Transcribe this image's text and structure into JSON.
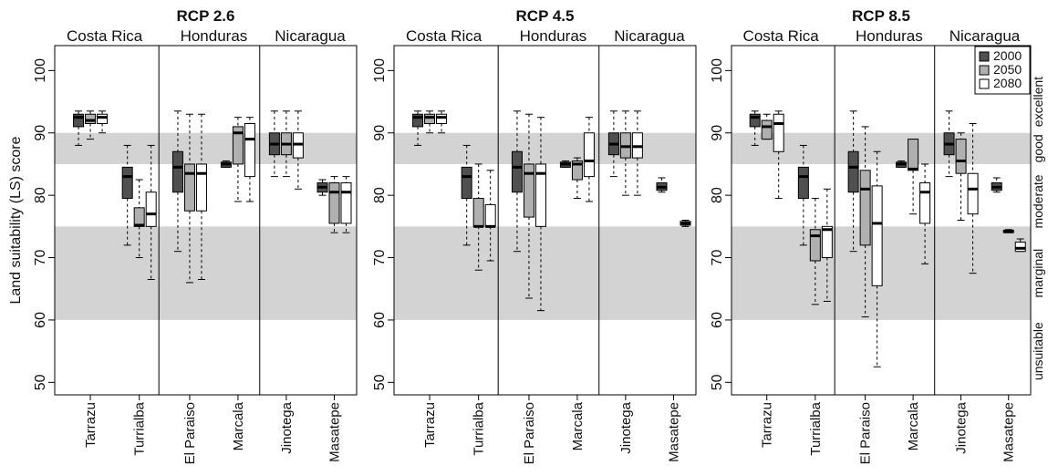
{
  "chart_data": [
    {
      "type": "box",
      "title": "RCP 2.6",
      "ylabel": "Land suitability (LS) score",
      "ylim": [
        48,
        104
      ],
      "yticks": [
        50,
        60,
        70,
        80,
        90,
        100
      ],
      "countries": [
        "Costa Rica",
        "Honduras",
        "Nicaragua"
      ],
      "sites": [
        "Tarrazu",
        "Turrialba",
        "El Paraiso",
        "Marcala",
        "Jinotega",
        "Masatepe"
      ],
      "bands": [
        {
          "from": 85,
          "to": 90
        },
        {
          "from": 60,
          "to": 75
        }
      ],
      "boxes": [
        [
          [
            88,
            91,
            92.5,
            93,
            93.5
          ],
          [
            89,
            91.5,
            92,
            93,
            93.5
          ],
          [
            90,
            91.5,
            92.5,
            93,
            93.5
          ]
        ],
        [
          [
            72,
            79.5,
            83,
            84.5,
            88
          ],
          [
            70,
            75,
            75.2,
            78,
            82.5
          ],
          [
            66.5,
            75,
            77,
            80.5,
            88
          ]
        ],
        [
          [
            71,
            80.5,
            84.5,
            87,
            93.5
          ],
          [
            66,
            77.5,
            83.5,
            85,
            93
          ],
          [
            66.5,
            77.5,
            83.5,
            85,
            93
          ]
        ],
        [
          [
            84.5,
            84.5,
            85,
            85.3,
            85.5
          ],
          [
            79,
            85,
            90,
            91,
            92.5
          ],
          [
            79,
            83,
            89,
            91.5,
            92.5
          ]
        ],
        [
          [
            83,
            86.5,
            88.2,
            90,
            93.5
          ],
          [
            83,
            86.5,
            88.2,
            90,
            93.5
          ],
          [
            81,
            86,
            88.2,
            90,
            93.5
          ]
        ],
        [
          [
            80,
            80.5,
            81.3,
            82,
            82.5
          ],
          [
            74,
            75.5,
            80.5,
            82,
            83
          ],
          [
            74,
            75.5,
            80.5,
            82,
            83
          ]
        ]
      ]
    },
    {
      "type": "box",
      "title": "RCP 4.5",
      "ylabel": "",
      "ylim": [
        48,
        104
      ],
      "yticks": [
        50,
        60,
        70,
        80,
        90,
        100
      ],
      "countries": [
        "Costa Rica",
        "Honduras",
        "Nicaragua"
      ],
      "sites": [
        "Tarrazu",
        "Turrialba",
        "El Paraiso",
        "Marcala",
        "Jinotega",
        "Masatepe"
      ],
      "bands": [
        {
          "from": 85,
          "to": 90
        },
        {
          "from": 60,
          "to": 75
        }
      ],
      "boxes": [
        [
          [
            88,
            91,
            92.5,
            93,
            93.5
          ],
          [
            90,
            91.5,
            92.5,
            93,
            93.5
          ],
          [
            90,
            91.5,
            92.5,
            93,
            93.5
          ]
        ],
        [
          [
            72,
            79.5,
            83,
            84.5,
            88
          ],
          [
            68,
            75,
            75,
            79.5,
            85
          ],
          [
            69.5,
            75,
            75,
            78.5,
            84
          ]
        ],
        [
          [
            71,
            80.5,
            84.5,
            87,
            93.5
          ],
          [
            63.5,
            76.5,
            83.5,
            85,
            93
          ],
          [
            61.5,
            75,
            83.5,
            85,
            92.5
          ]
        ],
        [
          [
            84.5,
            84.5,
            85,
            85.3,
            85.5
          ],
          [
            79.5,
            82.5,
            85,
            85.5,
            86
          ],
          [
            79,
            83,
            85.5,
            90,
            92.5
          ]
        ],
        [
          [
            83,
            86.5,
            88.2,
            90,
            93.5
          ],
          [
            80,
            86,
            87.8,
            90,
            93.5
          ],
          [
            80,
            86,
            87.8,
            90,
            93.5
          ]
        ],
        [
          [
            80.5,
            80.8,
            81.3,
            82,
            82.8
          ],
          null,
          [
            75,
            75.2,
            75.5,
            75.8,
            76
          ]
        ]
      ]
    },
    {
      "type": "box",
      "title": "RCP 8.5",
      "ylabel": "",
      "ylim": [
        48,
        104
      ],
      "yticks": [
        50,
        60,
        70,
        80,
        90,
        100
      ],
      "countries": [
        "Costa Rica",
        "Honduras",
        "Nicaragua"
      ],
      "sites": [
        "Tarrazu",
        "Turrialba",
        "El Paraiso",
        "Marcala",
        "Jinotega",
        "Masatepe"
      ],
      "bands": [
        {
          "from": 85,
          "to": 90
        },
        {
          "from": 60,
          "to": 75
        }
      ],
      "classes": [
        "excellent",
        "good",
        "moderate",
        "marginal",
        "unsuitable"
      ],
      "legend": {
        "position": "top-right",
        "entries": [
          {
            "label": "2000",
            "color": "#505050"
          },
          {
            "label": "2050",
            "color": "#b0b0b0"
          },
          {
            "label": "2080",
            "color": "#ffffff"
          }
        ]
      },
      "boxes": [
        [
          [
            88,
            91,
            92.5,
            93,
            93.5
          ],
          [
            89,
            89,
            91,
            92,
            93
          ],
          [
            79.5,
            87,
            91.5,
            93,
            93.5
          ]
        ],
        [
          [
            72,
            79.5,
            83,
            84.5,
            88
          ],
          [
            62.5,
            69.5,
            73.5,
            74.5,
            79.5
          ],
          [
            63,
            70,
            74.5,
            75,
            81
          ]
        ],
        [
          [
            71,
            80.5,
            84.5,
            87,
            93.5
          ],
          [
            60.5,
            72,
            81,
            84,
            91
          ],
          [
            52.5,
            65.5,
            75.5,
            81.5,
            87
          ]
        ],
        [
          [
            84.5,
            84.5,
            85,
            85.3,
            85.5
          ],
          [
            77,
            84,
            84.2,
            89,
            89
          ],
          [
            69,
            75.5,
            80.5,
            82,
            85
          ]
        ],
        [
          [
            83,
            86.5,
            88.2,
            90,
            93.5
          ],
          [
            76,
            83.5,
            85.5,
            89,
            90
          ],
          [
            67.5,
            77,
            81,
            83.5,
            91.5
          ]
        ],
        [
          [
            80.5,
            80.8,
            81.3,
            82,
            82.8
          ],
          [
            74,
            74,
            74.2,
            74.4,
            74.5
          ],
          [
            71,
            71,
            71.5,
            72.5,
            73
          ]
        ]
      ]
    }
  ]
}
